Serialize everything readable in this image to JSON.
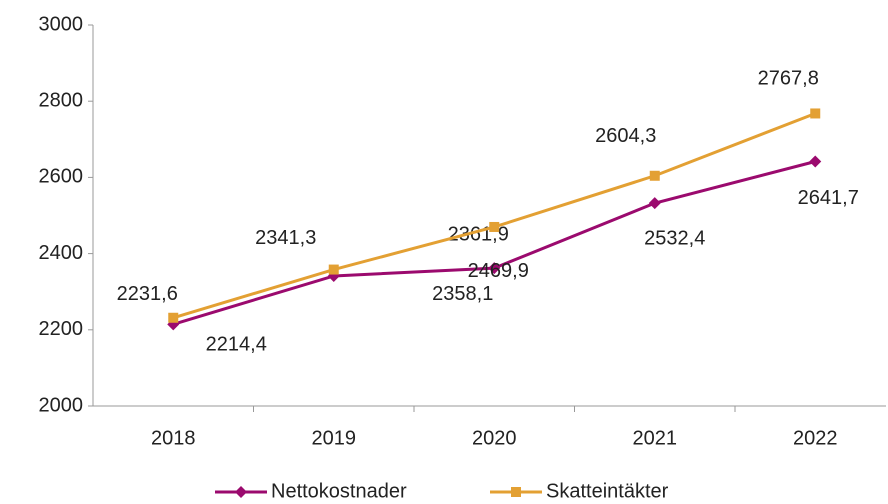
{
  "chart_data": {
    "type": "line",
    "categories": [
      "2018",
      "2019",
      "2020",
      "2021",
      "2022"
    ],
    "series": [
      {
        "name": "Nettokostnader",
        "color": "#9b0a6e",
        "marker": "diamond",
        "values": [
          2214.4,
          2341.3,
          2361.9,
          2532.4,
          2641.7
        ],
        "value_labels": [
          "2214,4",
          "2341,3",
          "2361,9",
          "2532,4",
          "2641,7"
        ]
      },
      {
        "name": "Skatteintäkter",
        "color": "#e3a033",
        "marker": "square",
        "values": [
          2231.6,
          2358.1,
          2469.9,
          2604.3,
          2767.8
        ],
        "value_labels": [
          "2231,6",
          "2358,1",
          "2469,9",
          "2604,3",
          "2767,8"
        ]
      }
    ],
    "ylim": [
      2000,
      3000
    ],
    "yticks": [
      2000,
      2200,
      2400,
      2600,
      2800,
      3000
    ],
    "grid": false,
    "legend": "bottom"
  }
}
